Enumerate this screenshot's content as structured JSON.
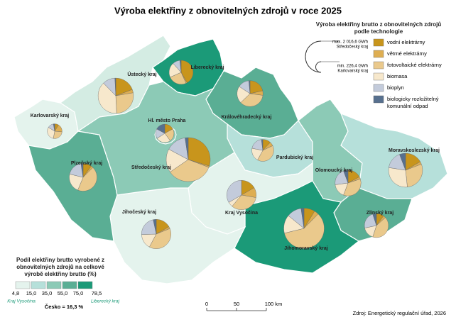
{
  "title": "Výroba elektřiny z obnovitelných zdrojů v roce 2025",
  "regions": [
    {
      "name": "Karlovarský kraj",
      "color": "#e4f3ed",
      "values": [
        20,
        40,
        60,
        70,
        30,
        6.4
      ]
    },
    {
      "name": "Ústecký kraj",
      "color": "#d4ece3",
      "values": [
        250,
        40,
        350,
        500,
        150,
        10
      ]
    },
    {
      "name": "Liberecký kraj",
      "color": "#1b9a78",
      "values": [
        250,
        10,
        150,
        120,
        60,
        10
      ]
    },
    {
      "name": "Královéhradecký kraj",
      "color": "#5aae94",
      "values": [
        150,
        40,
        250,
        150,
        100,
        10
      ]
    },
    {
      "name": "Pardubický kraj",
      "color": "#b6e0da",
      "values": [
        60,
        30,
        200,
        100,
        100,
        10
      ]
    },
    {
      "name": "Olomoucký kraj",
      "color": "#8ccab6",
      "values": [
        120,
        20,
        250,
        120,
        150,
        40
      ]
    },
    {
      "name": "Moravskoslezský kraj",
      "color": "#b6e0da",
      "values": [
        200,
        30,
        350,
        350,
        200,
        70
      ]
    },
    {
      "name": "Zlínský kraj",
      "color": "#5aae94",
      "values": [
        60,
        20,
        250,
        100,
        140,
        30
      ]
    },
    {
      "name": "Jihomoravský kraj",
      "color": "#1b9a78",
      "values": [
        150,
        60,
        1000,
        250,
        200,
        40
      ]
    },
    {
      "name": "Kraj Vysočina",
      "color": "#e4f3ed",
      "values": [
        150,
        100,
        300,
        50,
        300,
        0
      ]
    },
    {
      "name": "Jihočeský kraj",
      "color": "#e4f3ed",
      "values": [
        150,
        20,
        350,
        150,
        200,
        30
      ]
    },
    {
      "name": "Plzeňský kraj",
      "color": "#5aae94",
      "values": [
        80,
        20,
        350,
        180,
        150,
        20
      ]
    },
    {
      "name": "Středočeský kraj",
      "color": "#8ccab6",
      "values": [
        600,
        20,
        700,
        350,
        300,
        46.6
      ]
    },
    {
      "name": "Hl. město Praha",
      "color": "#8ccab6",
      "values": [
        60,
        0,
        80,
        90,
        60,
        60
      ]
    }
  ],
  "technology_legend": {
    "title": "Výroba elektřiny brutto z obnovitelných zdrojů podle technologie",
    "max_label": "max. 2 016,6 GWh",
    "max_region": "Středočeský kraj",
    "min_label": "min. 226,4 GWh",
    "min_region": "Karlovarský kraj",
    "items": [
      {
        "label": "vodní elektrárny",
        "color": "#c8951c"
      },
      {
        "label": "větrné elektrárny",
        "color": "#deae52"
      },
      {
        "label": "fotovoltaické elektrárny",
        "color": "#eac98c"
      },
      {
        "label": "biomasa",
        "color": "#f7e8cc"
      },
      {
        "label": "bioplyn",
        "color": "#c3cbdb"
      },
      {
        "label": "biologicky rozložitelný komunální odpad",
        "color": "#57708f"
      }
    ]
  },
  "share_legend": {
    "title": "Podíl elektřiny brutto vyrobené z obnovitelných zdrojů na celkové výrobě elektřiny brutto (%)",
    "colors": [
      "#e4f3ed",
      "#b6e0da",
      "#8ccab6",
      "#5aae94",
      "#1b9a78"
    ],
    "breaks": [
      "4,8",
      "15,0",
      "35,0",
      "55,0",
      "75,0",
      "78,5"
    ],
    "min_region": "Kraj Vysočina",
    "max_region": "Liberecký kraj",
    "country": "Česko = 16,3 %"
  },
  "scale": [
    "0",
    "50",
    "100 km"
  ],
  "source": "Zdroj: Energetický regulační úřad, 2026"
}
